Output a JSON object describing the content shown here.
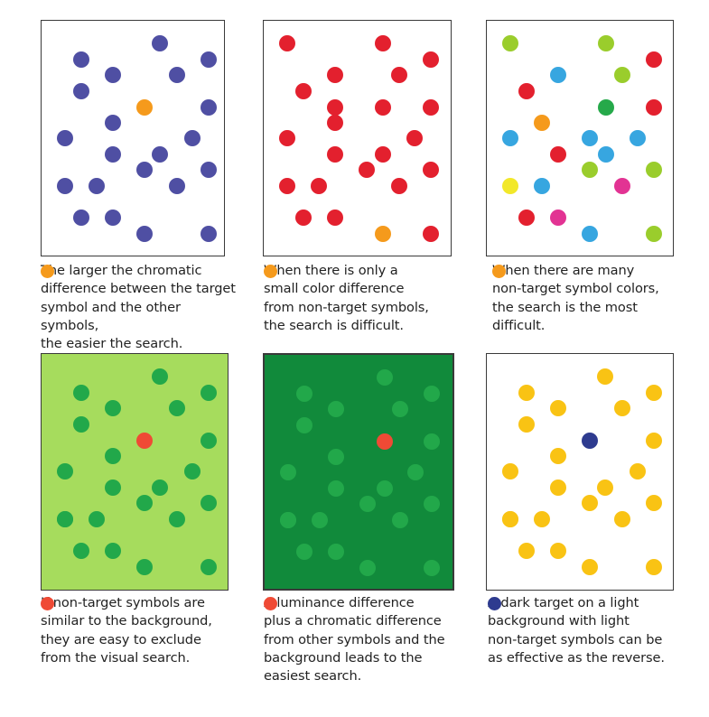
{
  "panels": [
    {
      "background": "#ffffff",
      "target_color": "#f59a1c",
      "caption": "      The larger the chromatic\ndifference between the target\nsymbol and the other symbols,\nthe easier the search.",
      "dots": [
        {
          "id": "d1",
          "color": "#4f4fa3"
        },
        {
          "id": "d2",
          "color": "#4f4fa3"
        },
        {
          "id": "d3",
          "color": "#4f4fa3"
        },
        {
          "id": "d4",
          "color": "#4f4fa3"
        },
        {
          "id": "d5",
          "color": "#4f4fa3"
        },
        {
          "id": "d6",
          "color": "#4f4fa3"
        },
        {
          "id": "t",
          "color": "#f59a1c"
        },
        {
          "id": "d7",
          "color": "#4f4fa3"
        },
        {
          "id": "d8",
          "color": "#4f4fa3"
        },
        {
          "id": "d9",
          "color": "#4f4fa3"
        },
        {
          "id": "d10",
          "color": "#4f4fa3"
        },
        {
          "id": "d11",
          "color": "#4f4fa3"
        },
        {
          "id": "d12",
          "color": "#4f4fa3"
        },
        {
          "id": "d13",
          "color": "#4f4fa3"
        },
        {
          "id": "d14",
          "color": "#4f4fa3"
        },
        {
          "id": "d15",
          "color": "#4f4fa3"
        },
        {
          "id": "d16",
          "color": "#4f4fa3"
        },
        {
          "id": "d17",
          "color": "#4f4fa3"
        },
        {
          "id": "d18",
          "color": "#4f4fa3"
        },
        {
          "id": "d19",
          "color": "#4f4fa3"
        },
        {
          "id": "d20",
          "color": "#4f4fa3"
        },
        {
          "id": "d21",
          "color": "#4f4fa3"
        },
        {
          "id": "d22",
          "color": "#4f4fa3"
        }
      ]
    },
    {
      "background": "#ffffff",
      "target_color": "#f59a1c",
      "caption": "      When there is only a\nsmall color difference\nfrom non-target symbols,\nthe search is difficult.",
      "dots": [
        {
          "id": "d1",
          "color": "#e3202e"
        },
        {
          "id": "d2",
          "color": "#e3202e"
        },
        {
          "id": "d3",
          "color": "#e3202e"
        },
        {
          "id": "d4",
          "color": "#e3202e"
        },
        {
          "id": "d5",
          "color": "#e3202e"
        },
        {
          "id": "d6",
          "color": "#e3202e"
        },
        {
          "id": "d7",
          "color": "#e3202e"
        },
        {
          "id": "d8",
          "color": "#e3202e"
        },
        {
          "id": "d9",
          "color": "#e3202e"
        },
        {
          "id": "d10",
          "color": "#e3202e"
        },
        {
          "id": "d11",
          "color": "#e3202e"
        },
        {
          "id": "d12",
          "color": "#e3202e"
        },
        {
          "id": "d13",
          "color": "#e3202e"
        },
        {
          "id": "d14",
          "color": "#e3202e"
        },
        {
          "id": "d15",
          "color": "#e3202e"
        },
        {
          "id": "d16",
          "color": "#e3202e"
        },
        {
          "id": "d17",
          "color": "#e3202e"
        },
        {
          "id": "d18",
          "color": "#e3202e"
        },
        {
          "id": "d19",
          "color": "#e3202e"
        },
        {
          "id": "d20",
          "color": "#e3202e"
        },
        {
          "id": "d21",
          "color": "#e3202e"
        },
        {
          "id": "t",
          "color": "#f59a1c"
        },
        {
          "id": "d22",
          "color": "#e3202e"
        }
      ]
    },
    {
      "background": "#ffffff",
      "target_color": "#f59a1c",
      "caption": "      When there are many\nnon-target symbol colors,\nthe search is the most\ndifficult.",
      "dots": [
        {
          "id": "d1",
          "color": "#9acd2c"
        },
        {
          "id": "d2",
          "color": "#9acd2c"
        },
        {
          "id": "d3",
          "color": "#e3202e"
        },
        {
          "id": "d4",
          "color": "#37a6e0"
        },
        {
          "id": "d5",
          "color": "#9acd2c"
        },
        {
          "id": "d6",
          "color": "#e3202e"
        },
        {
          "id": "d7",
          "color": "#26a94a"
        },
        {
          "id": "d8",
          "color": "#e3202e"
        },
        {
          "id": "t",
          "color": "#f59a1c"
        },
        {
          "id": "d9",
          "color": "#37a6e0"
        },
        {
          "id": "d10",
          "color": "#37a6e0"
        },
        {
          "id": "d11",
          "color": "#37a6e0"
        },
        {
          "id": "d12",
          "color": "#e3202e"
        },
        {
          "id": "d13",
          "color": "#37a6e0"
        },
        {
          "id": "d14",
          "color": "#9acd2c"
        },
        {
          "id": "d15",
          "color": "#9acd2c"
        },
        {
          "id": "d16",
          "color": "#f2e82a"
        },
        {
          "id": "d17",
          "color": "#37a6e0"
        },
        {
          "id": "d18",
          "color": "#e23393"
        },
        {
          "id": "d19",
          "color": "#e3202e"
        },
        {
          "id": "d20",
          "color": "#e23393"
        },
        {
          "id": "d21",
          "color": "#37a6e0"
        },
        {
          "id": "d22",
          "color": "#9acd2c"
        }
      ]
    },
    {
      "background": "#a6dc5d",
      "target_color": "#ef4a35",
      "caption": "      If non-target symbols are\nsimilar to the background,\nthey are easy to exclude\nfrom the visual search.",
      "dots": [
        {
          "id": "d1",
          "color": "#22a84a"
        },
        {
          "id": "d2",
          "color": "#22a84a"
        },
        {
          "id": "d3",
          "color": "#22a84a"
        },
        {
          "id": "d4",
          "color": "#22a84a"
        },
        {
          "id": "d5",
          "color": "#22a84a"
        },
        {
          "id": "t",
          "color": "#ef4a35"
        },
        {
          "id": "d6",
          "color": "#22a84a"
        },
        {
          "id": "d7",
          "color": "#22a84a"
        },
        {
          "id": "d8",
          "color": "#22a84a"
        },
        {
          "id": "d9",
          "color": "#22a84a"
        },
        {
          "id": "d10",
          "color": "#22a84a"
        },
        {
          "id": "d11",
          "color": "#22a84a"
        },
        {
          "id": "d12",
          "color": "#22a84a"
        },
        {
          "id": "d13",
          "color": "#22a84a"
        },
        {
          "id": "d14",
          "color": "#22a84a"
        },
        {
          "id": "d15",
          "color": "#22a84a"
        },
        {
          "id": "d16",
          "color": "#22a84a"
        },
        {
          "id": "d17",
          "color": "#22a84a"
        },
        {
          "id": "d18",
          "color": "#22a84a"
        },
        {
          "id": "d19",
          "color": "#22a84a"
        },
        {
          "id": "d20",
          "color": "#22a84a"
        },
        {
          "id": "d21",
          "color": "#22a84a"
        },
        {
          "id": "d22",
          "color": "#22a84a"
        }
      ]
    },
    {
      "background": "#118a3b",
      "target_color": "#ef4a35",
      "caption": "      A luminance difference\nplus a chromatic difference\nfrom other symbols and the\nbackground leads to the\neasiest search.",
      "dots": [
        {
          "id": "d1",
          "color": "#22a84a"
        },
        {
          "id": "d2",
          "color": "#22a84a"
        },
        {
          "id": "d3",
          "color": "#22a84a"
        },
        {
          "id": "d4",
          "color": "#22a84a"
        },
        {
          "id": "d5",
          "color": "#22a84a"
        },
        {
          "id": "t",
          "color": "#ef4a35"
        },
        {
          "id": "d6",
          "color": "#22a84a"
        },
        {
          "id": "d7",
          "color": "#22a84a"
        },
        {
          "id": "d8",
          "color": "#22a84a"
        },
        {
          "id": "d9",
          "color": "#22a84a"
        },
        {
          "id": "d10",
          "color": "#22a84a"
        },
        {
          "id": "d11",
          "color": "#22a84a"
        },
        {
          "id": "d12",
          "color": "#22a84a"
        },
        {
          "id": "d13",
          "color": "#22a84a"
        },
        {
          "id": "d14",
          "color": "#22a84a"
        },
        {
          "id": "d15",
          "color": "#22a84a"
        },
        {
          "id": "d16",
          "color": "#22a84a"
        },
        {
          "id": "d17",
          "color": "#22a84a"
        },
        {
          "id": "d18",
          "color": "#22a84a"
        },
        {
          "id": "d19",
          "color": "#22a84a"
        },
        {
          "id": "d20",
          "color": "#22a84a"
        },
        {
          "id": "d21",
          "color": "#22a84a"
        },
        {
          "id": "d22",
          "color": "#22a84a"
        }
      ]
    },
    {
      "background": "#ffffff",
      "target_color": "#2e3b8f",
      "caption": "      A dark target on a light\nbackground with light\nnon-target symbols can be\nas effective as the reverse.",
      "dots": [
        {
          "id": "d1",
          "color": "#f9c314"
        },
        {
          "id": "d2",
          "color": "#f9c314"
        },
        {
          "id": "d3",
          "color": "#f9c314"
        },
        {
          "id": "d4",
          "color": "#f9c314"
        },
        {
          "id": "d5",
          "color": "#f9c314"
        },
        {
          "id": "t",
          "color": "#2e3b8f"
        },
        {
          "id": "d6",
          "color": "#f9c314"
        },
        {
          "id": "d7",
          "color": "#f9c314"
        },
        {
          "id": "d8",
          "color": "#f9c314"
        },
        {
          "id": "d9",
          "color": "#f9c314"
        },
        {
          "id": "d10",
          "color": "#f9c314"
        },
        {
          "id": "d11",
          "color": "#f9c314"
        },
        {
          "id": "d12",
          "color": "#f9c314"
        },
        {
          "id": "d13",
          "color": "#f9c314"
        },
        {
          "id": "d14",
          "color": "#f9c314"
        },
        {
          "id": "d15",
          "color": "#f9c314"
        },
        {
          "id": "d16",
          "color": "#f9c314"
        },
        {
          "id": "d17",
          "color": "#f9c314"
        },
        {
          "id": "d18",
          "color": "#f9c314"
        },
        {
          "id": "d19",
          "color": "#f9c314"
        },
        {
          "id": "d20",
          "color": "#f9c314"
        },
        {
          "id": "d21",
          "color": "#f9c314"
        },
        {
          "id": "d22",
          "color": "#f9c314"
        }
      ]
    }
  ]
}
